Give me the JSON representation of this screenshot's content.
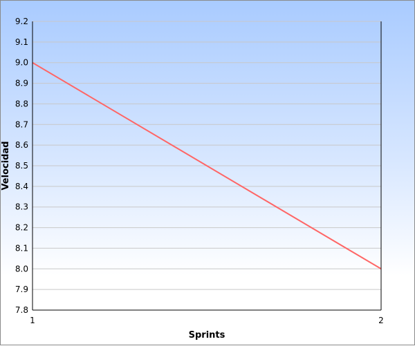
{
  "chart_data": {
    "type": "line",
    "xlabel": "Sprints",
    "ylabel": "Velocidad",
    "x": [
      1,
      2
    ],
    "x_ticks": [
      "1",
      "2"
    ],
    "xlim": [
      1,
      2
    ],
    "ylim": [
      7.8,
      9.2
    ],
    "y_ticks": [
      "7.8",
      "7.9",
      "8.0",
      "8.1",
      "8.2",
      "8.3",
      "8.4",
      "8.5",
      "8.6",
      "8.7",
      "8.8",
      "8.9",
      "9.0",
      "9.1",
      "9.2"
    ],
    "series": [
      {
        "values": [
          9.0,
          8.0
        ],
        "color": "#ff6666"
      }
    ],
    "grid": true,
    "background": "gradient blue-to-white"
  }
}
